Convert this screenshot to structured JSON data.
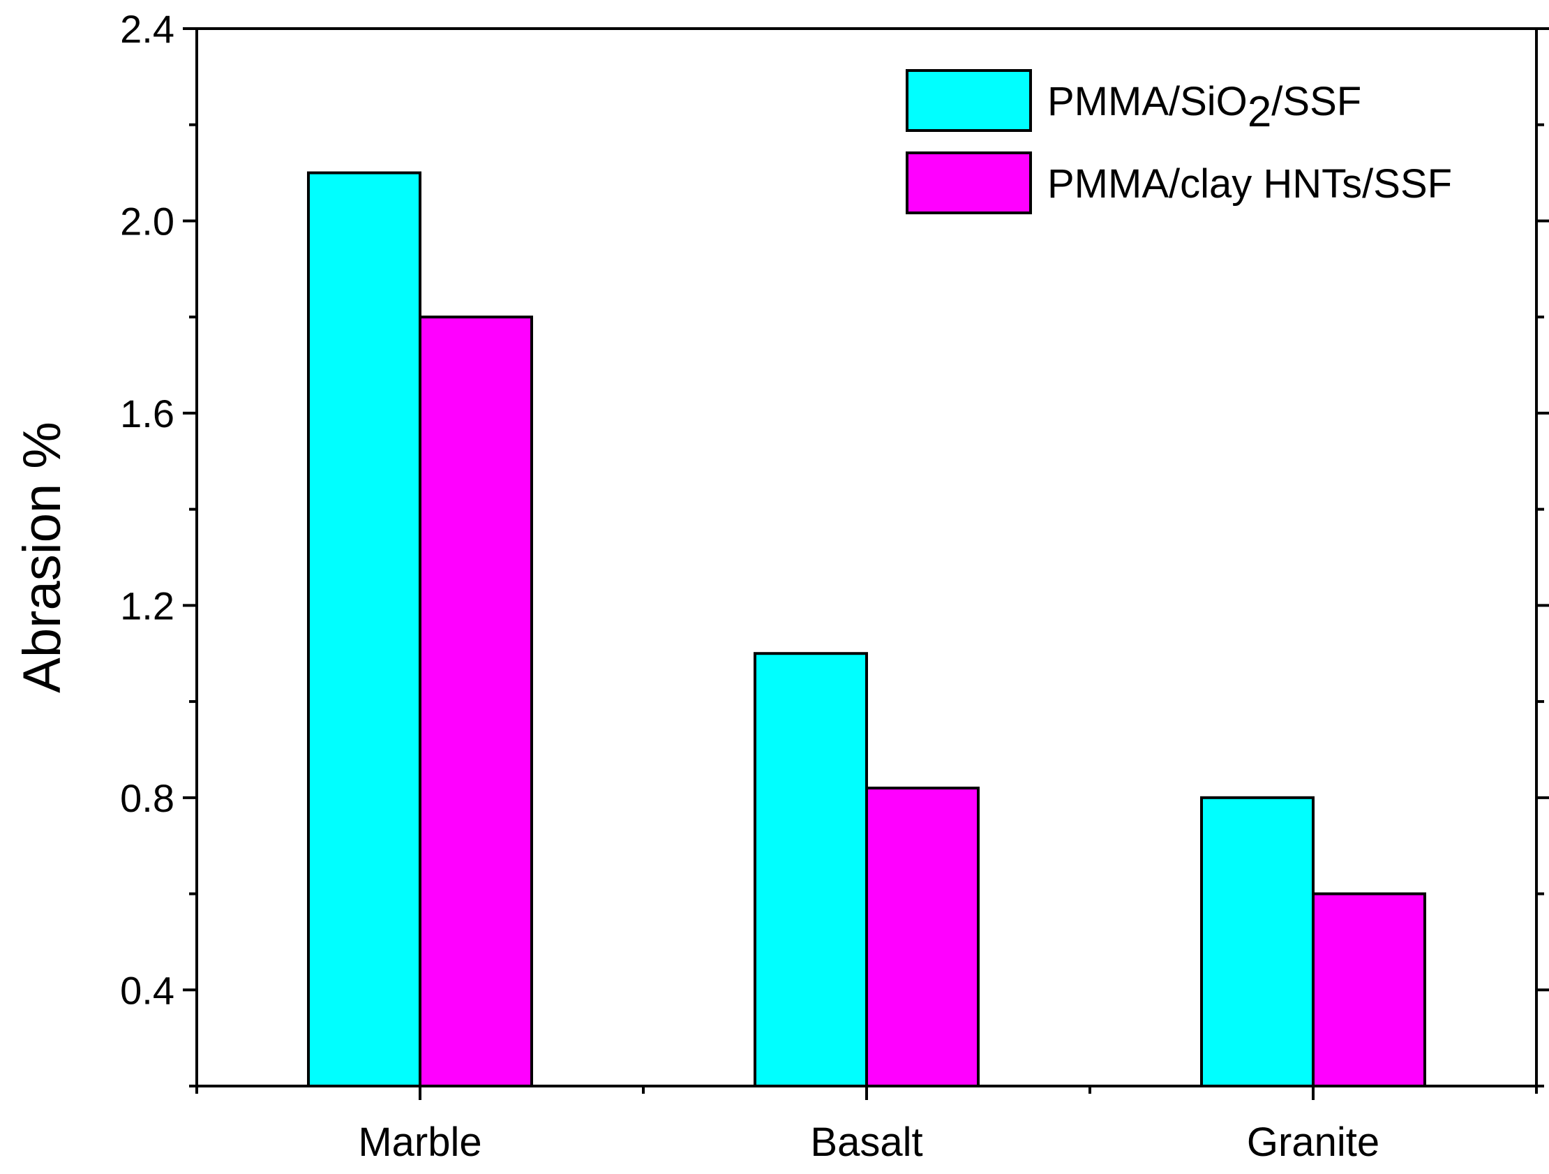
{
  "chart_data": {
    "type": "bar",
    "title": "",
    "xlabel": "",
    "ylabel": "Abrasion %",
    "categories": [
      "Marble",
      "Basalt",
      "Granite"
    ],
    "series": [
      {
        "name": "PMMA/SiO2/SSF",
        "name_parts": [
          "PMMA/SiO",
          "2",
          "/SSF"
        ],
        "color": "#00FFFF",
        "values": [
          2.1,
          1.1,
          0.8
        ]
      },
      {
        "name": "PMMA/clay HNTs/SSF",
        "name_parts": [
          "PMMA/clay HNTs/SSF"
        ],
        "color": "#FF00FF",
        "values": [
          1.8,
          0.82,
          0.6
        ]
      }
    ],
    "ylim": [
      0.2,
      2.4
    ],
    "yticks": [
      0.4,
      0.8,
      1.2,
      1.6,
      2.0,
      2.4
    ],
    "ytick_labels": [
      "0.4",
      "0.8",
      "1.2",
      "1.6",
      "2.0",
      "2.4"
    ],
    "grid": false,
    "legend_position": "top-right"
  }
}
